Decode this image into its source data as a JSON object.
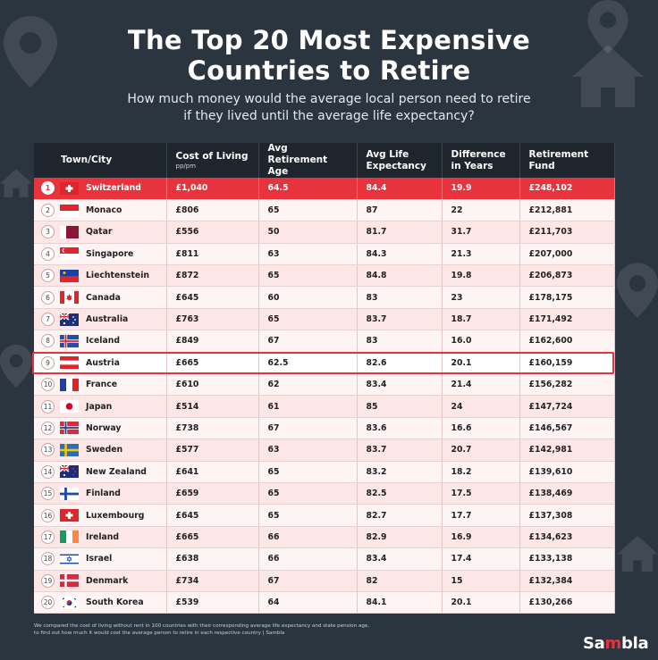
{
  "page": {
    "title_line1": "The Top 20 Most Expensive",
    "title_line2": "Countries to Retire",
    "subtitle_line1": "How much money would the average local person need to retire",
    "subtitle_line2": "if they lived until the average life expectancy?",
    "footnote_line1": "We compared the cost of living without rent in 100 countries with their corresponding average life expectancy and state pension age,",
    "footnote_line2": "to find out how much it would cost the average person to retire in each respective country | Sambla",
    "logo_prefix": "Sa",
    "logo_mid": "m",
    "logo_suffix": "bla"
  },
  "colors": {
    "background": "#2b3540",
    "accent": "#e8323c",
    "header": "#1e252c",
    "row": "#fde6e6"
  },
  "chart_data": {
    "type": "table",
    "headers": [
      {
        "label": "Town/City",
        "unit": ""
      },
      {
        "label": "Cost of Living",
        "unit": "pp/pm"
      },
      {
        "label": "Avg Retirement Age",
        "unit": ""
      },
      {
        "label": "Avg Life Expectancy",
        "unit": ""
      },
      {
        "label": "Difference in Years",
        "unit": ""
      },
      {
        "label": "Retirement Fund",
        "unit": ""
      }
    ],
    "highlighted_rank": "9",
    "rows": [
      {
        "rank": "1",
        "country": "Switzerland",
        "flag": "switzerland-flag-icon",
        "cost": "£1,040",
        "retire_age": "64.5",
        "life_exp": "84.4",
        "diff": "19.9",
        "fund": "£248,102"
      },
      {
        "rank": "2",
        "country": "Monaco",
        "flag": "monaco-flag-icon",
        "cost": "£806",
        "retire_age": "65",
        "life_exp": "87",
        "diff": "22",
        "fund": "£212,881"
      },
      {
        "rank": "3",
        "country": "Qatar",
        "flag": "qatar-flag-icon",
        "cost": "£556",
        "retire_age": "50",
        "life_exp": "81.7",
        "diff": "31.7",
        "fund": "£211,703"
      },
      {
        "rank": "4",
        "country": "Singapore",
        "flag": "singapore-flag-icon",
        "cost": "£811",
        "retire_age": "63",
        "life_exp": "84.3",
        "diff": "21.3",
        "fund": "£207,000"
      },
      {
        "rank": "5",
        "country": "Liechtenstein",
        "flag": "liechtenstein-flag-icon",
        "cost": "£872",
        "retire_age": "65",
        "life_exp": "84.8",
        "diff": "19.8",
        "fund": "£206,873"
      },
      {
        "rank": "6",
        "country": "Canada",
        "flag": "canada-flag-icon",
        "cost": "£645",
        "retire_age": "60",
        "life_exp": "83",
        "diff": "23",
        "fund": "£178,175"
      },
      {
        "rank": "7",
        "country": "Australia",
        "flag": "australia-flag-icon",
        "cost": "£763",
        "retire_age": "65",
        "life_exp": "83.7",
        "diff": "18.7",
        "fund": "£171,492"
      },
      {
        "rank": "8",
        "country": "Iceland",
        "flag": "iceland-flag-icon",
        "cost": "£849",
        "retire_age": "67",
        "life_exp": "83",
        "diff": "16.0",
        "fund": "£162,600"
      },
      {
        "rank": "9",
        "country": "Austria",
        "flag": "austria-flag-icon",
        "cost": "£665",
        "retire_age": "62.5",
        "life_exp": "82.6",
        "diff": "20.1",
        "fund": "£160,159"
      },
      {
        "rank": "10",
        "country": "France",
        "flag": "france-flag-icon",
        "cost": "£610",
        "retire_age": "62",
        "life_exp": "83.4",
        "diff": "21.4",
        "fund": "£156,282"
      },
      {
        "rank": "11",
        "country": "Japan",
        "flag": "japan-flag-icon",
        "cost": "£514",
        "retire_age": "61",
        "life_exp": "85",
        "diff": "24",
        "fund": "£147,724"
      },
      {
        "rank": "12",
        "country": "Norway",
        "flag": "norway-flag-icon",
        "cost": "£738",
        "retire_age": "67",
        "life_exp": "83.6",
        "diff": "16.6",
        "fund": "£146,567"
      },
      {
        "rank": "13",
        "country": "Sweden",
        "flag": "sweden-flag-icon",
        "cost": "£577",
        "retire_age": "63",
        "life_exp": "83.7",
        "diff": "20.7",
        "fund": "£142,981"
      },
      {
        "rank": "14",
        "country": "New Zealand",
        "flag": "new-zealand-flag-icon",
        "cost": "£641",
        "retire_age": "65",
        "life_exp": "83.2",
        "diff": "18.2",
        "fund": "£139,610"
      },
      {
        "rank": "15",
        "country": "Finland",
        "flag": "finland-flag-icon",
        "cost": "£659",
        "retire_age": "65",
        "life_exp": "82.5",
        "diff": "17.5",
        "fund": "£138,469"
      },
      {
        "rank": "16",
        "country": "Luxembourg",
        "flag": "luxembourg-flag-icon",
        "cost": "£645",
        "retire_age": "65",
        "life_exp": "82.7",
        "diff": "17.7",
        "fund": "£137,308"
      },
      {
        "rank": "17",
        "country": "Ireland",
        "flag": "ireland-flag-icon",
        "cost": "£665",
        "retire_age": "66",
        "life_exp": "82.9",
        "diff": "16.9",
        "fund": "£134,623"
      },
      {
        "rank": "18",
        "country": "Israel",
        "flag": "israel-flag-icon",
        "cost": "£638",
        "retire_age": "66",
        "life_exp": "83.4",
        "diff": "17.4",
        "fund": "£133,138"
      },
      {
        "rank": "19",
        "country": "Denmark",
        "flag": "denmark-flag-icon",
        "cost": "£734",
        "retire_age": "67",
        "life_exp": "82",
        "diff": "15",
        "fund": "£132,384"
      },
      {
        "rank": "20",
        "country": "South Korea",
        "flag": "south-korea-flag-icon",
        "cost": "£539",
        "retire_age": "64",
        "life_exp": "84.1",
        "diff": "20.1",
        "fund": "£130,266"
      }
    ]
  }
}
